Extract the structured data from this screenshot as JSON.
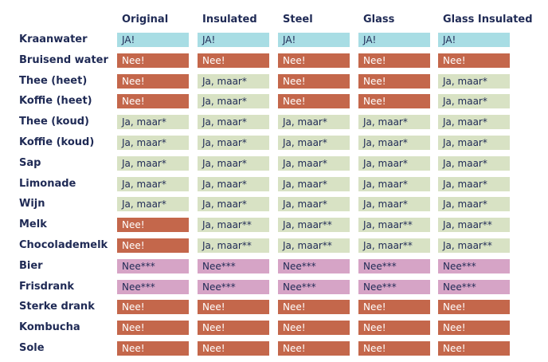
{
  "columns": [
    "Original",
    "Insulated",
    "Steel",
    "Glass",
    "Glass Insulated"
  ],
  "colors": {
    "yes": "#a8dde4",
    "no": "#c4674b",
    "maybe": "#d8e2c4",
    "nee3": "#d6a4c6",
    "text": "#1f2a55"
  },
  "rows": [
    {
      "label": "Kraanwater",
      "cells": [
        {
          "text": "JA!",
          "type": "yes"
        },
        {
          "text": "JA!",
          "type": "yes"
        },
        {
          "text": "JA!",
          "type": "yes"
        },
        {
          "text": "JA!",
          "type": "yes"
        },
        {
          "text": "JA!",
          "type": "yes"
        }
      ]
    },
    {
      "label": "Bruisend water",
      "cells": [
        {
          "text": "Nee!",
          "type": "no"
        },
        {
          "text": "Nee!",
          "type": "no"
        },
        {
          "text": "Nee!",
          "type": "no"
        },
        {
          "text": "Nee!",
          "type": "no"
        },
        {
          "text": "Nee!",
          "type": "no"
        }
      ]
    },
    {
      "label": "Thee (heet)",
      "cells": [
        {
          "text": "Nee!",
          "type": "no"
        },
        {
          "text": "Ja, maar*",
          "type": "maybe"
        },
        {
          "text": "Nee!",
          "type": "no"
        },
        {
          "text": "Nee!",
          "type": "no"
        },
        {
          "text": "Ja, maar*",
          "type": "maybe"
        }
      ]
    },
    {
      "label": "Koffie (heet)",
      "cells": [
        {
          "text": "Nee!",
          "type": "no"
        },
        {
          "text": "Ja, maar*",
          "type": "maybe"
        },
        {
          "text": "Nee!",
          "type": "no"
        },
        {
          "text": "Nee!",
          "type": "no"
        },
        {
          "text": "Ja, maar*",
          "type": "maybe"
        }
      ]
    },
    {
      "label": "Thee (koud)",
      "cells": [
        {
          "text": "Ja, maar*",
          "type": "maybe"
        },
        {
          "text": "Ja, maar*",
          "type": "maybe"
        },
        {
          "text": "Ja, maar*",
          "type": "maybe"
        },
        {
          "text": "Ja, maar*",
          "type": "maybe"
        },
        {
          "text": "Ja, maar*",
          "type": "maybe"
        }
      ]
    },
    {
      "label": "Koffie (koud)",
      "cells": [
        {
          "text": "Ja, maar*",
          "type": "maybe"
        },
        {
          "text": "Ja, maar*",
          "type": "maybe"
        },
        {
          "text": "Ja, maar*",
          "type": "maybe"
        },
        {
          "text": "Ja, maar*",
          "type": "maybe"
        },
        {
          "text": "Ja, maar*",
          "type": "maybe"
        }
      ]
    },
    {
      "label": "Sap",
      "cells": [
        {
          "text": "Ja, maar*",
          "type": "maybe"
        },
        {
          "text": "Ja, maar*",
          "type": "maybe"
        },
        {
          "text": "Ja, maar*",
          "type": "maybe"
        },
        {
          "text": "Ja, maar*",
          "type": "maybe"
        },
        {
          "text": "Ja, maar*",
          "type": "maybe"
        }
      ]
    },
    {
      "label": "Limonade",
      "cells": [
        {
          "text": "Ja, maar*",
          "type": "maybe"
        },
        {
          "text": "Ja, maar*",
          "type": "maybe"
        },
        {
          "text": "Ja, maar*",
          "type": "maybe"
        },
        {
          "text": "Ja, maar*",
          "type": "maybe"
        },
        {
          "text": "Ja, maar*",
          "type": "maybe"
        }
      ]
    },
    {
      "label": "Wijn",
      "cells": [
        {
          "text": "Ja, maar*",
          "type": "maybe"
        },
        {
          "text": "Ja, maar*",
          "type": "maybe"
        },
        {
          "text": "Ja, maar*",
          "type": "maybe"
        },
        {
          "text": "Ja, maar*",
          "type": "maybe"
        },
        {
          "text": "Ja, maar*",
          "type": "maybe"
        }
      ]
    },
    {
      "label": "Melk",
      "cells": [
        {
          "text": "Nee!",
          "type": "no"
        },
        {
          "text": "Ja, maar**",
          "type": "maybe"
        },
        {
          "text": "Ja, maar**",
          "type": "maybe"
        },
        {
          "text": "Ja, maar**",
          "type": "maybe"
        },
        {
          "text": "Ja, maar**",
          "type": "maybe"
        }
      ]
    },
    {
      "label": "Chocolademelk",
      "cells": [
        {
          "text": "Nee!",
          "type": "no"
        },
        {
          "text": "Ja, maar**",
          "type": "maybe"
        },
        {
          "text": "Ja, maar**",
          "type": "maybe"
        },
        {
          "text": "Ja, maar**",
          "type": "maybe"
        },
        {
          "text": "Ja, maar**",
          "type": "maybe"
        }
      ]
    },
    {
      "label": "Bier",
      "cells": [
        {
          "text": "Nee***",
          "type": "nee3"
        },
        {
          "text": "Nee***",
          "type": "nee3"
        },
        {
          "text": "Nee***",
          "type": "nee3"
        },
        {
          "text": "Nee***",
          "type": "nee3"
        },
        {
          "text": "Nee***",
          "type": "nee3"
        }
      ]
    },
    {
      "label": "Frisdrank",
      "cells": [
        {
          "text": "Nee***",
          "type": "nee3"
        },
        {
          "text": "Nee***",
          "type": "nee3"
        },
        {
          "text": "Nee***",
          "type": "nee3"
        },
        {
          "text": "Nee***",
          "type": "nee3"
        },
        {
          "text": "Nee***",
          "type": "nee3"
        }
      ]
    },
    {
      "label": "Sterke drank",
      "cells": [
        {
          "text": "Nee!",
          "type": "no"
        },
        {
          "text": "Nee!",
          "type": "no"
        },
        {
          "text": "Nee!",
          "type": "no"
        },
        {
          "text": "Nee!",
          "type": "no"
        },
        {
          "text": "Nee!",
          "type": "no"
        }
      ]
    },
    {
      "label": "Kombucha",
      "cells": [
        {
          "text": "Nee!",
          "type": "no"
        },
        {
          "text": "Nee!",
          "type": "no"
        },
        {
          "text": "Nee!",
          "type": "no"
        },
        {
          "text": "Nee!",
          "type": "no"
        },
        {
          "text": "Nee!",
          "type": "no"
        }
      ]
    },
    {
      "label": "Sole",
      "cells": [
        {
          "text": "Nee!",
          "type": "no"
        },
        {
          "text": "Nee!",
          "type": "no"
        },
        {
          "text": "Nee!",
          "type": "no"
        },
        {
          "text": "Nee!",
          "type": "no"
        },
        {
          "text": "Nee!",
          "type": "no"
        }
      ]
    }
  ]
}
